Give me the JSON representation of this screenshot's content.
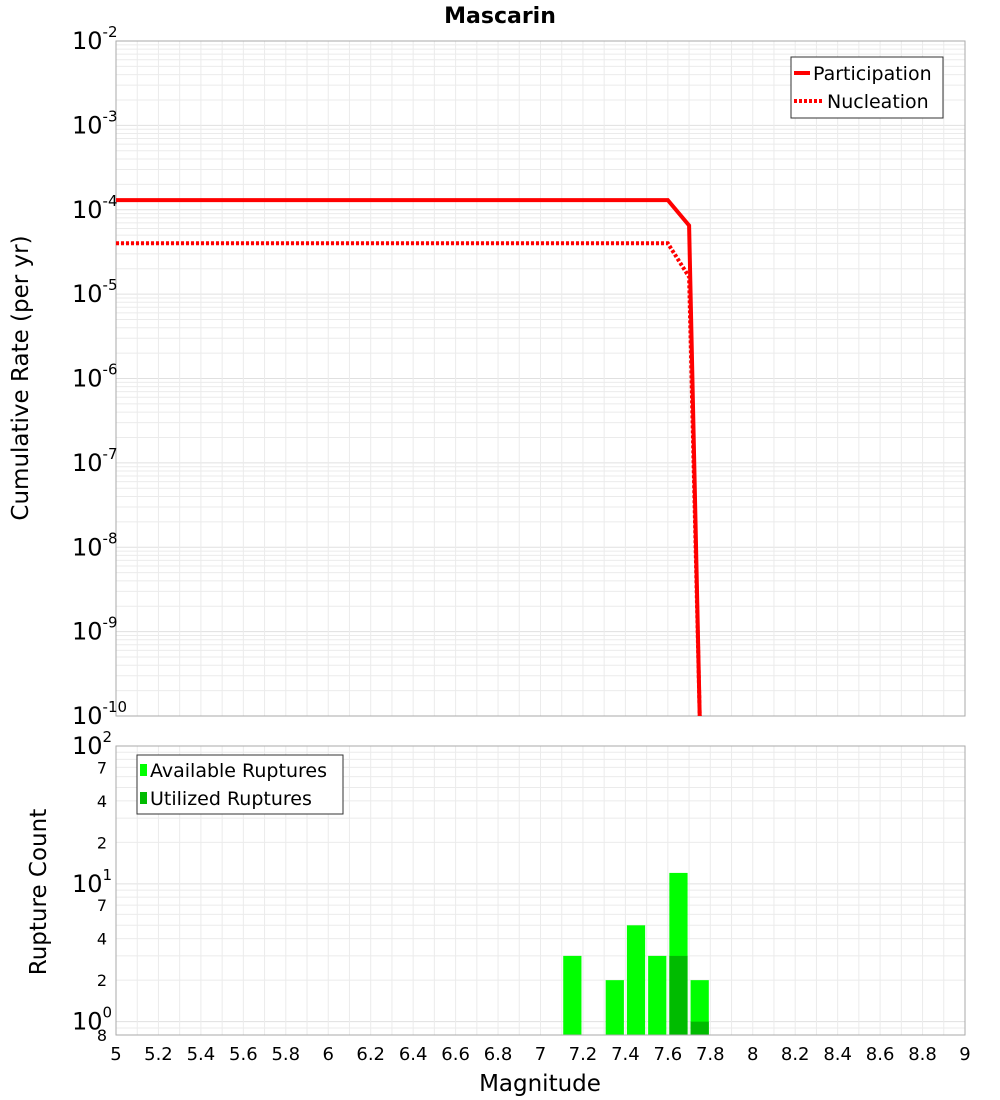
{
  "chart_data": [
    {
      "type": "line",
      "title": "Mascarin",
      "xlabel": "",
      "ylabel": "Cumulative Rate (per yr)",
      "yscale": "log",
      "xlim": [
        5,
        9
      ],
      "ylim": [
        1e-10,
        0.01
      ],
      "y_ticks": [
        {
          "base": "10",
          "exp": "-2"
        },
        {
          "base": "10",
          "exp": "-3"
        },
        {
          "base": "10",
          "exp": "-4"
        },
        {
          "base": "10",
          "exp": "-5"
        },
        {
          "base": "10",
          "exp": "-6"
        },
        {
          "base": "10",
          "exp": "-7"
        },
        {
          "base": "10",
          "exp": "-8"
        },
        {
          "base": "10",
          "exp": "-9"
        },
        {
          "base": "10",
          "exp": "-10"
        }
      ],
      "legend_position": "top-right",
      "series": [
        {
          "name": "Participation",
          "style": "solid",
          "color": "#ff0000",
          "x": [
            5.0,
            7.6,
            7.7,
            7.75
          ],
          "y": [
            0.00013,
            0.00013,
            6.5e-05,
            1e-10
          ]
        },
        {
          "name": "Nucleation",
          "style": "dotted",
          "color": "#ff0000",
          "x": [
            5.0,
            7.6,
            7.7,
            7.75
          ],
          "y": [
            4e-05,
            4e-05,
            1.6e-05,
            1e-10
          ]
        }
      ]
    },
    {
      "type": "bar",
      "title": "",
      "xlabel": "Magnitude",
      "ylabel": "Rupture Count",
      "yscale": "log",
      "xlim": [
        5,
        9
      ],
      "ylim": [
        0.8,
        100
      ],
      "x_ticks": [
        "5",
        "5.2",
        "5.4",
        "5.6",
        "5.8",
        "6",
        "6.2",
        "6.4",
        "6.6",
        "6.8",
        "7",
        "7.2",
        "7.4",
        "7.6",
        "7.8",
        "8",
        "8.2",
        "8.4",
        "8.6",
        "8.8",
        "9"
      ],
      "y_major_ticks": [
        {
          "base": "10",
          "exp": "2"
        },
        {
          "base": "10",
          "exp": "1"
        },
        {
          "base": "10",
          "exp": "0"
        }
      ],
      "y_minor_labels": [
        "7",
        "4",
        "2",
        "7",
        "4",
        "2",
        "8"
      ],
      "legend_position": "top-left",
      "series": [
        {
          "name": "Available Ruptures",
          "color": "#00ff00",
          "x": [
            7.15,
            7.35,
            7.45,
            7.55,
            7.65,
            7.75
          ],
          "values": [
            3,
            2,
            5,
            3,
            12,
            2
          ]
        },
        {
          "name": "Utilized Ruptures",
          "color": "#00bb00",
          "x": [
            7.65,
            7.75
          ],
          "values": [
            3,
            1
          ]
        }
      ]
    }
  ]
}
